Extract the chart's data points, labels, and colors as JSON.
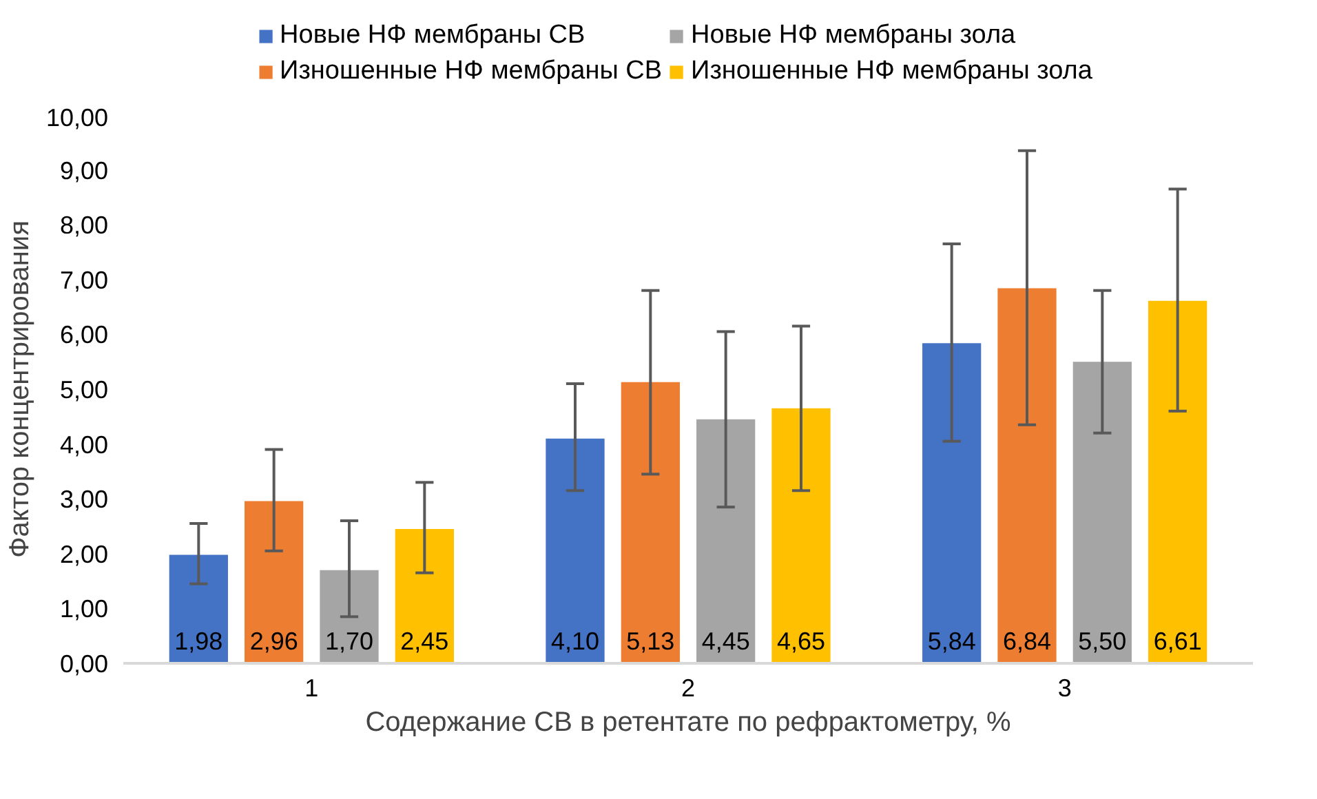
{
  "chart_data": {
    "type": "bar",
    "xlabel": "Содержание СВ в ретентате по рефрактометру, %",
    "ylabel": "Фактор концентрирования",
    "categories": [
      "1",
      "2",
      "3"
    ],
    "series": [
      {
        "name": "Новые НФ мембраны СВ",
        "color": "#4472c4",
        "values": [
          1.98,
          4.1,
          5.84
        ],
        "value_labels": [
          "1,98",
          "4,10",
          "5,84"
        ],
        "errors": [
          [
            1.45,
            2.55
          ],
          [
            3.15,
            5.1
          ],
          [
            4.05,
            7.65
          ]
        ]
      },
      {
        "name": "Изношенные НФ мембраны СВ",
        "color": "#ed7d31",
        "values": [
          2.96,
          5.13,
          6.84
        ],
        "value_labels": [
          "2,96",
          "5,13",
          "6,84"
        ],
        "errors": [
          [
            2.05,
            3.9
          ],
          [
            3.45,
            6.8
          ],
          [
            4.35,
            9.35
          ]
        ]
      },
      {
        "name": "Новые НФ мембраны зола",
        "color": "#a5a5a5",
        "values": [
          1.7,
          4.45,
          5.5
        ],
        "value_labels": [
          "1,70",
          "4,45",
          "5,50"
        ],
        "errors": [
          [
            0.85,
            2.6
          ],
          [
            2.85,
            6.05
          ],
          [
            4.2,
            6.8
          ]
        ]
      },
      {
        "name": "Изношенные НФ мембраны зола",
        "color": "#ffc000",
        "values": [
          2.45,
          4.65,
          6.61
        ],
        "value_labels": [
          "2,45",
          "4,65",
          "6,61"
        ],
        "errors": [
          [
            1.65,
            3.3
          ],
          [
            3.15,
            6.15
          ],
          [
            4.6,
            8.65
          ]
        ]
      }
    ],
    "ylim": [
      0,
      10
    ],
    "yticks": [
      {
        "value": 0,
        "label": "0,00"
      },
      {
        "value": 1,
        "label": "1,00"
      },
      {
        "value": 2,
        "label": "2,00"
      },
      {
        "value": 3,
        "label": "3,00"
      },
      {
        "value": 4,
        "label": "4,00"
      },
      {
        "value": 5,
        "label": "5,00"
      },
      {
        "value": 6,
        "label": "6,00"
      },
      {
        "value": 7,
        "label": "7,00"
      },
      {
        "value": 8,
        "label": "8,00"
      },
      {
        "value": 9,
        "label": "9,00"
      },
      {
        "value": 10,
        "label": "10,00"
      }
    ],
    "grid": false,
    "legend": "top"
  }
}
